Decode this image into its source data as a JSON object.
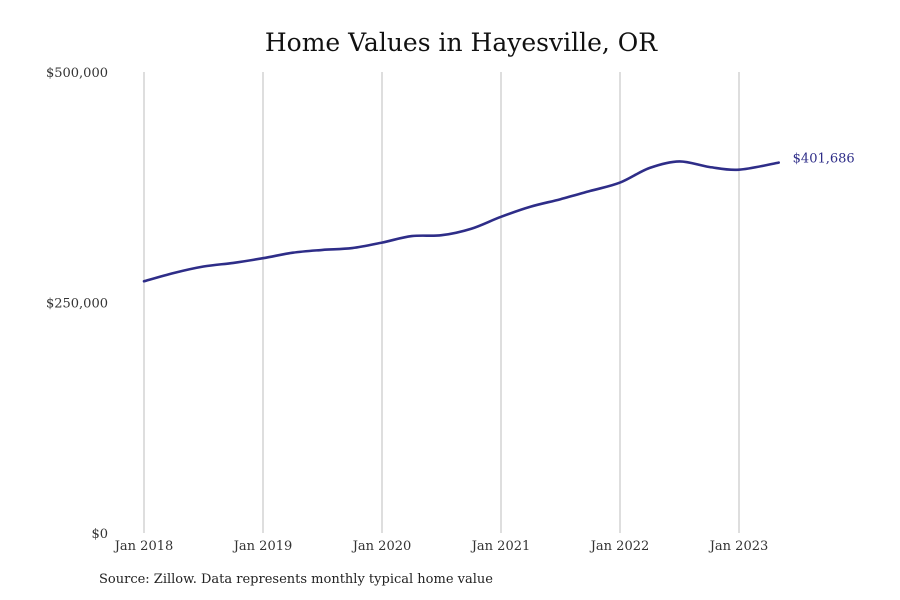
{
  "chart_data": {
    "type": "line",
    "title": "Home Values in Hayesville, OR",
    "xlabel": "",
    "ylabel": "",
    "ylim": [
      0,
      500000
    ],
    "yticks": [
      0,
      250000,
      500000
    ],
    "ytick_labels": [
      "$0",
      "$250,000",
      "$500,000"
    ],
    "xticks": [
      "2018-01",
      "2019-01",
      "2020-01",
      "2021-01",
      "2022-01",
      "2023-01"
    ],
    "xtick_labels": [
      "Jan 2018",
      "Jan 2019",
      "Jan 2020",
      "Jan 2021",
      "Jan 2022",
      "Jan 2023"
    ],
    "grid": "vertical",
    "color": "#2e2d88",
    "end_label": "$401,686",
    "series": [
      {
        "x": [
          "2018-01",
          "2018-04",
          "2018-07",
          "2018-10",
          "2019-01",
          "2019-04",
          "2019-07",
          "2019-10",
          "2020-01",
          "2020-04",
          "2020-07",
          "2020-10",
          "2021-01",
          "2021-04",
          "2021-07",
          "2021-10",
          "2022-01",
          "2022-04",
          "2022-07",
          "2022-10",
          "2023-01",
          "2023-05"
        ],
        "values": [
          273000,
          282000,
          289000,
          293000,
          298000,
          304000,
          307000,
          309000,
          315000,
          322000,
          323000,
          330000,
          343000,
          354000,
          362000,
          371000,
          380000,
          396000,
          403000,
          397000,
          394000,
          401686
        ]
      }
    ]
  },
  "source_note": "Source: Zillow. Data represents monthly typical home value"
}
